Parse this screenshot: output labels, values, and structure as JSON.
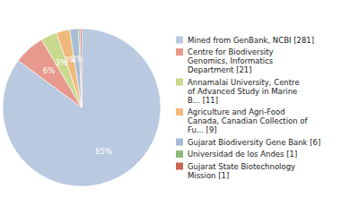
{
  "chart_data": {
    "type": "pie",
    "categories": [
      "Mined from GenBank, NCBI [281]",
      "Centre for Biodiversity\nGenomics, Informatics\nDepartment [21]",
      "Annamalai University, Centre\nof Advanced Study in Marine\nB... [11]",
      "Agriculture and Agri-Food\nCanada, Canadian Collection of\nFu... [9]",
      "Gujarat Biodiversity Gene Bank [6]",
      "Universidad de los Andes [1]",
      "Gujarat State Biotechnology\nMission [1]"
    ],
    "values": [
      85.15151515151516,
      6.363636363636363,
      3.3333333333333335,
      2.727272727272727,
      1.8181818181818181,
      0.30303030303030304,
      0.30303030303030304
    ],
    "value_labels": [
      "85%",
      "6%",
      "3%",
      "3%",
      "2%",
      null,
      null
    ],
    "data_labels": true,
    "colors": [
      "#b8c9e0",
      "#e8998d",
      "#c9d98e",
      "#f0b87a",
      "#a8bdd4",
      "#8db87a",
      "#cc6655"
    ],
    "legend": "right"
  }
}
